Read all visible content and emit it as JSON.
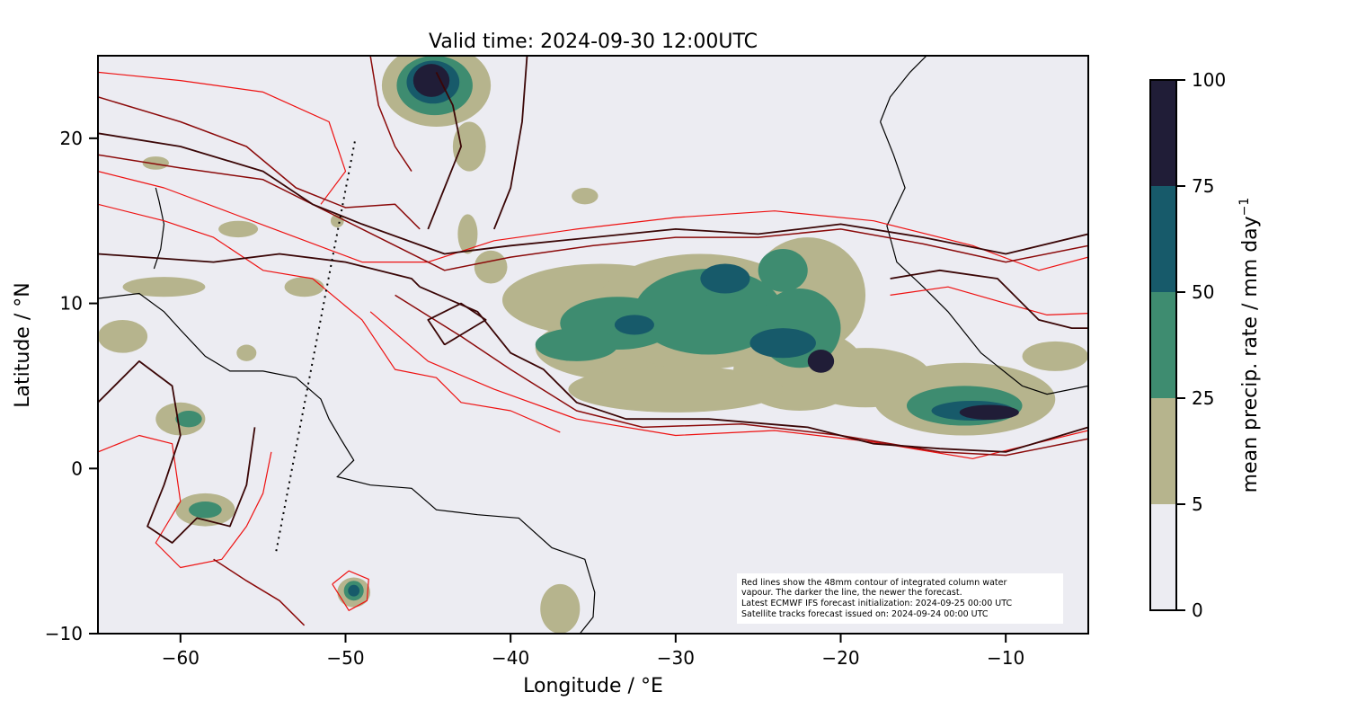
{
  "title": "Valid time: 2024-09-30 12:00UTC",
  "axes": {
    "xlabel": "Longitude / °E",
    "ylabel": "Latitude / °N",
    "xlim": [
      -65,
      -5
    ],
    "ylim": [
      -10,
      25
    ],
    "xticks": [
      -60,
      -50,
      -40,
      -30,
      -20,
      -10
    ],
    "yticks": [
      -10,
      0,
      10,
      20
    ],
    "xtick_labels": [
      "−60",
      "−50",
      "−40",
      "−30",
      "−20",
      "−10"
    ],
    "ytick_labels": [
      "−10",
      "0",
      "10",
      "20"
    ]
  },
  "colorbar": {
    "label": "mean precip. rate / mm day",
    "label_superscript": "−1",
    "levels": [
      0,
      5,
      25,
      50,
      75,
      100
    ],
    "tick_labels": [
      "0",
      "5",
      "25",
      "50",
      "75",
      "100"
    ],
    "colors": [
      "#ececf2",
      "#b6b48d",
      "#3e8c70",
      "#175a6a",
      "#201d37"
    ]
  },
  "note": [
    "Red lines show the 48mm contour of integrated column water",
    "vapour. The darker the line, the newer the forecast.",
    "Latest ECMWF IFS forecast initialization: 2024-09-25 00:00 UTC",
    "Satellite tracks forecast issued on: 2024-09-24 00:00 UTC"
  ],
  "colors": {
    "background": "#ececf2",
    "contour_old": "#ee1111",
    "contour_mid": "#8b0a0a",
    "contour_new": "#3a0606",
    "coastline": "#000000"
  },
  "satellite_track": [
    [
      -54.2,
      -5.0
    ],
    [
      -49.4,
      20.0
    ]
  ],
  "precip_cells": [
    {
      "lon": -44.5,
      "lat": 23.2,
      "rx": 3.3,
      "ry": 2.5,
      "level": 1
    },
    {
      "lon": -44.6,
      "lat": 23.2,
      "rx": 2.3,
      "ry": 1.8,
      "level": 2
    },
    {
      "lon": -44.7,
      "lat": 23.4,
      "rx": 1.6,
      "ry": 1.3,
      "level": 3
    },
    {
      "lon": -44.8,
      "lat": 23.5,
      "rx": 1.1,
      "ry": 1.0,
      "level": 4
    },
    {
      "lon": -42.6,
      "lat": 14.2,
      "rx": 0.6,
      "ry": 1.2,
      "level": 1
    },
    {
      "lon": -41.2,
      "lat": 12.2,
      "rx": 1.0,
      "ry": 1.0,
      "level": 1
    },
    {
      "lon": -34.5,
      "lat": 10.2,
      "rx": 6.0,
      "ry": 2.2,
      "level": 1
    },
    {
      "lon": -33.0,
      "lat": 7.3,
      "rx": 5.5,
      "ry": 2.0,
      "level": 1
    },
    {
      "lon": -28.5,
      "lat": 9.5,
      "rx": 6.5,
      "ry": 3.5,
      "level": 1
    },
    {
      "lon": -22.0,
      "lat": 10.5,
      "rx": 3.5,
      "ry": 3.5,
      "level": 1
    },
    {
      "lon": -22.5,
      "lat": 6.0,
      "rx": 4.0,
      "ry": 2.5,
      "level": 1
    },
    {
      "lon": -30.0,
      "lat": 4.8,
      "rx": 6.5,
      "ry": 1.4,
      "level": 1
    },
    {
      "lon": -18.5,
      "lat": 5.5,
      "rx": 4.0,
      "ry": 1.8,
      "level": 1
    },
    {
      "lon": -12.5,
      "lat": 4.2,
      "rx": 5.5,
      "ry": 2.2,
      "level": 1
    },
    {
      "lon": -7.0,
      "lat": 6.8,
      "rx": 2.0,
      "ry": 0.9,
      "level": 1
    },
    {
      "lon": -33.5,
      "lat": 8.8,
      "rx": 3.5,
      "ry": 1.6,
      "level": 2
    },
    {
      "lon": -28.0,
      "lat": 9.5,
      "rx": 4.5,
      "ry": 2.6,
      "level": 2
    },
    {
      "lon": -22.5,
      "lat": 8.5,
      "rx": 2.5,
      "ry": 2.4,
      "level": 2
    },
    {
      "lon": -23.5,
      "lat": 12.0,
      "rx": 1.5,
      "ry": 1.3,
      "level": 2
    },
    {
      "lon": -36.0,
      "lat": 7.5,
      "rx": 2.5,
      "ry": 1.0,
      "level": 2
    },
    {
      "lon": -12.5,
      "lat": 3.8,
      "rx": 3.5,
      "ry": 1.2,
      "level": 2
    },
    {
      "lon": -27.0,
      "lat": 11.5,
      "rx": 1.5,
      "ry": 0.9,
      "level": 3
    },
    {
      "lon": -23.5,
      "lat": 7.6,
      "rx": 2.0,
      "ry": 0.9,
      "level": 3
    },
    {
      "lon": -32.5,
      "lat": 8.7,
      "rx": 1.2,
      "ry": 0.6,
      "level": 3
    },
    {
      "lon": -12.0,
      "lat": 3.5,
      "rx": 2.5,
      "ry": 0.6,
      "level": 3
    },
    {
      "lon": -21.2,
      "lat": 6.5,
      "rx": 0.8,
      "ry": 0.7,
      "level": 4
    },
    {
      "lon": -11.0,
      "lat": 3.4,
      "rx": 1.8,
      "ry": 0.45,
      "level": 4
    },
    {
      "lon": -37.0,
      "lat": -8.5,
      "rx": 1.2,
      "ry": 1.5,
      "level": 1
    },
    {
      "lon": -63.5,
      "lat": 8.0,
      "rx": 1.5,
      "ry": 1.0,
      "level": 1
    },
    {
      "lon": -60.0,
      "lat": 3.0,
      "rx": 1.5,
      "ry": 1.0,
      "level": 1
    },
    {
      "lon": -59.5,
      "lat": 3.0,
      "rx": 0.8,
      "ry": 0.5,
      "level": 2
    },
    {
      "lon": -58.5,
      "lat": -2.5,
      "rx": 1.8,
      "ry": 1.0,
      "level": 1
    },
    {
      "lon": -58.5,
      "lat": -2.5,
      "rx": 1.0,
      "ry": 0.5,
      "level": 2
    },
    {
      "lon": -49.5,
      "lat": -7.5,
      "rx": 1.0,
      "ry": 0.9,
      "level": 1
    },
    {
      "lon": -49.5,
      "lat": -7.4,
      "rx": 0.6,
      "ry": 0.6,
      "level": 2
    },
    {
      "lon": -49.5,
      "lat": -7.4,
      "rx": 0.35,
      "ry": 0.35,
      "level": 3
    },
    {
      "lon": -61.0,
      "lat": 11.0,
      "rx": 2.5,
      "ry": 0.6,
      "level": 1
    },
    {
      "lon": -56.5,
      "lat": 14.5,
      "rx": 1.2,
      "ry": 0.5,
      "level": 1
    },
    {
      "lon": -52.5,
      "lat": 11.0,
      "rx": 1.2,
      "ry": 0.6,
      "level": 1
    },
    {
      "lon": -50.5,
      "lat": 15.0,
      "rx": 0.4,
      "ry": 0.4,
      "level": 1
    },
    {
      "lon": -61.5,
      "lat": 18.5,
      "rx": 0.8,
      "ry": 0.4,
      "level": 1
    },
    {
      "lon": -56.0,
      "lat": 7.0,
      "rx": 0.6,
      "ry": 0.5,
      "level": 1
    },
    {
      "lon": -35.5,
      "lat": 16.5,
      "rx": 0.8,
      "ry": 0.5,
      "level": 1
    },
    {
      "lon": -42.5,
      "lat": 19.5,
      "rx": 1.0,
      "ry": 1.5,
      "level": 1
    }
  ],
  "coastlines": [
    {
      "name": "africa-coast",
      "points": [
        [
          -17.6,
          21.0
        ],
        [
          -16.8,
          19.0
        ],
        [
          -16.1,
          17.0
        ],
        [
          -17.2,
          14.7
        ],
        [
          -16.6,
          12.5
        ],
        [
          -15.0,
          11.0
        ],
        [
          -13.5,
          9.5
        ],
        [
          -11.5,
          7.0
        ],
        [
          -9.0,
          5.0
        ],
        [
          -7.5,
          4.5
        ],
        [
          -5.0,
          5.0
        ]
      ]
    },
    {
      "name": "africa-north-coast",
      "points": [
        [
          -17.6,
          21.0
        ],
        [
          -17.0,
          22.5
        ],
        [
          -15.8,
          24.0
        ],
        [
          -14.8,
          25.0
        ]
      ]
    },
    {
      "name": "south-america-north-coast",
      "points": [
        [
          -65.0,
          10.3
        ],
        [
          -62.5,
          10.6
        ],
        [
          -61.0,
          9.5
        ],
        [
          -60.0,
          8.4
        ],
        [
          -58.5,
          6.8
        ],
        [
          -57.0,
          5.9
        ],
        [
          -55.0,
          5.9
        ],
        [
          -53.0,
          5.5
        ],
        [
          -51.5,
          4.2
        ],
        [
          -51.0,
          3.0
        ],
        [
          -50.3,
          1.8
        ],
        [
          -49.5,
          0.5
        ],
        [
          -50.5,
          -0.5
        ],
        [
          -48.5,
          -1.0
        ],
        [
          -46.0,
          -1.2
        ],
        [
          -44.5,
          -2.5
        ],
        [
          -42.0,
          -2.8
        ],
        [
          -39.5,
          -3.0
        ],
        [
          -37.5,
          -4.8
        ],
        [
          -35.5,
          -5.5
        ],
        [
          -34.9,
          -7.5
        ],
        [
          -35.0,
          -9.0
        ],
        [
          -35.8,
          -10.0
        ]
      ]
    },
    {
      "name": "caribbean-arc",
      "points": [
        [
          -61.5,
          17.0
        ],
        [
          -61.3,
          16.2
        ],
        [
          -61.0,
          14.8
        ],
        [
          -61.2,
          13.3
        ],
        [
          -61.6,
          12.1
        ]
      ]
    }
  ],
  "contours": [
    {
      "level": "new",
      "points": [
        [
          -65.0,
          20.3
        ],
        [
          -60.0,
          19.5
        ],
        [
          -55.0,
          18.0
        ],
        [
          -52.0,
          16.0
        ],
        [
          -49.0,
          14.8
        ],
        [
          -44.0,
          13.0
        ],
        [
          -40.0,
          13.5
        ],
        [
          -35.0,
          14.0
        ],
        [
          -30.0,
          14.5
        ],
        [
          -25.0,
          14.2
        ],
        [
          -20.0,
          14.8
        ],
        [
          -15.0,
          14.0
        ],
        [
          -10.0,
          13.0
        ],
        [
          -5.0,
          14.2
        ]
      ]
    },
    {
      "level": "new",
      "points": [
        [
          -45.5,
          11.0
        ],
        [
          -42.0,
          9.5
        ],
        [
          -40.0,
          7.0
        ],
        [
          -38.0,
          6.0
        ],
        [
          -36.0,
          4.0
        ],
        [
          -33.0,
          3.0
        ],
        [
          -28.0,
          3.0
        ],
        [
          -22.0,
          2.5
        ],
        [
          -18.0,
          1.5
        ],
        [
          -14.0,
          1.2
        ],
        [
          -10.0,
          1.0
        ],
        [
          -5.0,
          2.5
        ]
      ]
    },
    {
      "level": "new",
      "points": [
        [
          -44.0,
          7.5
        ],
        [
          -41.5,
          9.0
        ],
        [
          -43.0,
          10.0
        ],
        [
          -45.0,
          9.0
        ],
        [
          -44.0,
          7.5
        ]
      ]
    },
    {
      "level": "new",
      "points": [
        [
          -65.0,
          13.0
        ],
        [
          -58.0,
          12.5
        ],
        [
          -54.0,
          13.0
        ],
        [
          -50.0,
          12.5
        ],
        [
          -46.0,
          11.5
        ],
        [
          -45.5,
          11.0
        ]
      ]
    },
    {
      "level": "new",
      "points": [
        [
          -45.0,
          14.5
        ],
        [
          -44.0,
          17.0
        ],
        [
          -43.0,
          19.5
        ],
        [
          -43.5,
          22.0
        ],
        [
          -44.5,
          24.0
        ]
      ]
    },
    {
      "level": "new",
      "points": [
        [
          -39.0,
          25.0
        ],
        [
          -39.3,
          21.0
        ],
        [
          -40.0,
          17.0
        ],
        [
          -41.0,
          14.5
        ]
      ]
    },
    {
      "level": "new",
      "points": [
        [
          -17.0,
          11.5
        ],
        [
          -14.0,
          12.0
        ],
        [
          -10.5,
          11.5
        ],
        [
          -8.0,
          9.0
        ],
        [
          -6.0,
          8.5
        ],
        [
          -5.0,
          8.5
        ]
      ]
    },
    {
      "level": "mid",
      "points": [
        [
          -65.0,
          19.0
        ],
        [
          -60.0,
          18.2
        ],
        [
          -55.0,
          17.5
        ],
        [
          -51.0,
          15.5
        ],
        [
          -48.0,
          14.0
        ],
        [
          -44.0,
          12.0
        ],
        [
          -40.0,
          12.8
        ],
        [
          -35.0,
          13.5
        ],
        [
          -30.0,
          14.0
        ],
        [
          -25.0,
          14.0
        ],
        [
          -20.0,
          14.5
        ],
        [
          -15.0,
          13.6
        ],
        [
          -10.0,
          12.5
        ],
        [
          -5.0,
          13.5
        ]
      ]
    },
    {
      "level": "mid",
      "points": [
        [
          -47.0,
          10.5
        ],
        [
          -43.0,
          8.0
        ],
        [
          -40.0,
          6.0
        ],
        [
          -36.0,
          3.5
        ],
        [
          -32.0,
          2.5
        ],
        [
          -26.0,
          2.7
        ],
        [
          -20.0,
          2.0
        ],
        [
          -14.0,
          1.0
        ],
        [
          -10.0,
          0.8
        ],
        [
          -5.0,
          1.8
        ]
      ]
    },
    {
      "level": "mid",
      "points": [
        [
          -65.0,
          22.5
        ],
        [
          -60.0,
          21.0
        ],
        [
          -56.0,
          19.5
        ],
        [
          -53.0,
          17.0
        ],
        [
          -50.0,
          15.8
        ],
        [
          -47.0,
          16.0
        ],
        [
          -45.5,
          14.5
        ]
      ]
    },
    {
      "level": "mid",
      "points": [
        [
          -48.5,
          25.0
        ],
        [
          -48.0,
          22.0
        ],
        [
          -47.0,
          19.5
        ],
        [
          -46.0,
          18.0
        ]
      ]
    },
    {
      "level": "old",
      "points": [
        [
          -65.0,
          18.0
        ],
        [
          -61.0,
          17.0
        ],
        [
          -57.0,
          15.5
        ],
        [
          -53.0,
          14.0
        ],
        [
          -49.0,
          12.5
        ],
        [
          -45.0,
          12.5
        ],
        [
          -41.0,
          13.8
        ],
        [
          -36.0,
          14.5
        ],
        [
          -30.0,
          15.2
        ],
        [
          -24.0,
          15.6
        ],
        [
          -18.0,
          15.0
        ],
        [
          -12.0,
          13.5
        ],
        [
          -8.0,
          12.0
        ],
        [
          -5.0,
          12.8
        ]
      ]
    },
    {
      "level": "old",
      "points": [
        [
          -48.5,
          9.5
        ],
        [
          -45.0,
          6.5
        ],
        [
          -41.0,
          4.8
        ],
        [
          -36.0,
          3.0
        ],
        [
          -30.0,
          2.0
        ],
        [
          -24.0,
          2.3
        ],
        [
          -18.0,
          1.6
        ],
        [
          -12.0,
          0.6
        ],
        [
          -5.0,
          2.3
        ]
      ]
    },
    {
      "level": "old",
      "points": [
        [
          -65.0,
          24.0
        ],
        [
          -60.0,
          23.5
        ],
        [
          -55.0,
          22.8
        ],
        [
          -51.0,
          21.0
        ],
        [
          -50.0,
          18.0
        ],
        [
          -51.5,
          16.0
        ]
      ]
    },
    {
      "level": "old",
      "points": [
        [
          -65.0,
          16.0
        ],
        [
          -61.0,
          15.0
        ],
        [
          -58.0,
          14.0
        ],
        [
          -55.0,
          12.0
        ],
        [
          -52.0,
          11.5
        ],
        [
          -49.0,
          9.0
        ],
        [
          -47.0,
          6.0
        ],
        [
          -44.5,
          5.5
        ],
        [
          -43.0,
          4.0
        ],
        [
          -40.0,
          3.5
        ],
        [
          -37.0,
          2.2
        ]
      ]
    },
    {
      "level": "old",
      "points": [
        [
          -65.0,
          1.0
        ],
        [
          -62.5,
          2.0
        ],
        [
          -60.5,
          1.5
        ],
        [
          -60.0,
          -2.0
        ],
        [
          -61.5,
          -4.5
        ],
        [
          -60.0,
          -6.0
        ],
        [
          -57.5,
          -5.5
        ],
        [
          -56.0,
          -3.5
        ],
        [
          -55.0,
          -1.5
        ],
        [
          -54.5,
          1.0
        ]
      ]
    },
    {
      "level": "old",
      "points": [
        [
          -50.8,
          -7.0
        ],
        [
          -49.8,
          -6.2
        ],
        [
          -48.6,
          -6.7
        ],
        [
          -48.7,
          -8.0
        ],
        [
          -49.8,
          -8.6
        ],
        [
          -50.8,
          -7.0
        ]
      ]
    },
    {
      "level": "old",
      "points": [
        [
          -17.0,
          10.5
        ],
        [
          -13.5,
          11.0
        ],
        [
          -10.0,
          10.0
        ],
        [
          -7.5,
          9.3
        ],
        [
          -5.0,
          9.4
        ]
      ]
    },
    {
      "level": "new",
      "points": [
        [
          -65.0,
          4.0
        ],
        [
          -62.5,
          6.5
        ],
        [
          -60.5,
          5.0
        ],
        [
          -60.0,
          2.0
        ],
        [
          -61.0,
          -1.0
        ],
        [
          -62.0,
          -3.5
        ],
        [
          -60.5,
          -4.5
        ],
        [
          -59.0,
          -3.0
        ],
        [
          -57.0,
          -3.5
        ],
        [
          -56.0,
          -1.0
        ],
        [
          -55.5,
          2.5
        ]
      ]
    },
    {
      "level": "mid",
      "points": [
        [
          -58.0,
          -5.5
        ],
        [
          -56.0,
          -6.8
        ],
        [
          -54.0,
          -8.0
        ],
        [
          -52.5,
          -9.5
        ]
      ]
    }
  ]
}
